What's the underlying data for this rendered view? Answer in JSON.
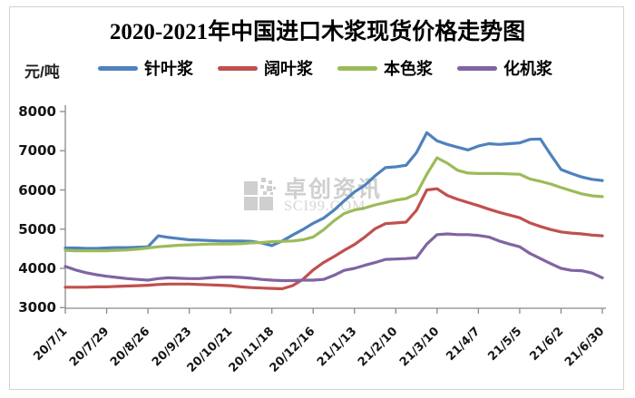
{
  "title": "2020-2021年中国进口木浆现货价格走势图",
  "y_axis_unit": "元/吨",
  "legend": [
    {
      "label": "针叶浆",
      "color": "#4F81BD"
    },
    {
      "label": "阔叶浆",
      "color": "#C0504D"
    },
    {
      "label": "本色浆",
      "color": "#9BBB59"
    },
    {
      "label": "化机浆",
      "color": "#8064A2"
    }
  ],
  "watermark": {
    "brand": "卓创资讯",
    "site": "SCI99.COM"
  },
  "chart_data": {
    "type": "line",
    "title": "2020-2021年中国进口木浆现货价格走势图",
    "ylabel": "元/吨",
    "ylim": [
      3000,
      8000
    ],
    "yticks": [
      3000,
      4000,
      5000,
      6000,
      7000,
      8000
    ],
    "x_tick_labels": [
      "20/7/1",
      "20/7/29",
      "20/8/26",
      "20/9/23",
      "20/10/21",
      "20/11/18",
      "20/12/16",
      "21/1/13",
      "21/2/10",
      "21/3/10",
      "21/4/7",
      "21/5/5",
      "21/6/2",
      "21/6/30"
    ],
    "x_start": "20/7/1",
    "x_end": "21/6/30",
    "sample_interval_days": 7,
    "grid": false,
    "legend_position": "top",
    "series": [
      {
        "name": "针叶浆",
        "color": "#4F81BD",
        "values": [
          4520,
          4520,
          4510,
          4510,
          4520,
          4530,
          4530,
          4540,
          4550,
          4830,
          4790,
          4760,
          4730,
          4720,
          4710,
          4700,
          4700,
          4700,
          4690,
          4650,
          4580,
          4700,
          4850,
          4990,
          5150,
          5280,
          5480,
          5720,
          5950,
          6120,
          6360,
          6570,
          6590,
          6630,
          6950,
          7460,
          7250,
          7160,
          7090,
          7020,
          7120,
          7180,
          7160,
          7180,
          7200,
          7290,
          7300,
          6900,
          6520,
          6420,
          6330,
          6270,
          6240
        ]
      },
      {
        "name": "阔叶浆",
        "color": "#C0504D",
        "values": [
          3520,
          3520,
          3520,
          3530,
          3530,
          3540,
          3550,
          3560,
          3570,
          3590,
          3600,
          3600,
          3600,
          3590,
          3580,
          3570,
          3560,
          3530,
          3510,
          3500,
          3490,
          3480,
          3560,
          3720,
          3960,
          4150,
          4300,
          4460,
          4610,
          4800,
          5010,
          5140,
          5160,
          5180,
          5480,
          6000,
          6030,
          5860,
          5760,
          5680,
          5600,
          5510,
          5430,
          5360,
          5290,
          5160,
          5070,
          4990,
          4930,
          4900,
          4880,
          4850,
          4830
        ]
      },
      {
        "name": "本色浆",
        "color": "#9BBB59",
        "values": [
          4460,
          4450,
          4450,
          4450,
          4450,
          4460,
          4470,
          4490,
          4520,
          4550,
          4570,
          4590,
          4600,
          4610,
          4620,
          4620,
          4620,
          4630,
          4650,
          4660,
          4680,
          4690,
          4700,
          4730,
          4800,
          4980,
          5210,
          5400,
          5490,
          5540,
          5620,
          5680,
          5740,
          5780,
          5900,
          6400,
          6820,
          6680,
          6500,
          6430,
          6420,
          6420,
          6420,
          6410,
          6400,
          6280,
          6220,
          6150,
          6060,
          5980,
          5900,
          5850,
          5830
        ]
      },
      {
        "name": "化机浆",
        "color": "#8064A2",
        "values": [
          4050,
          3960,
          3890,
          3840,
          3800,
          3770,
          3740,
          3720,
          3700,
          3740,
          3760,
          3750,
          3740,
          3740,
          3760,
          3780,
          3780,
          3770,
          3750,
          3720,
          3700,
          3690,
          3690,
          3700,
          3700,
          3720,
          3820,
          3950,
          4000,
          4080,
          4150,
          4230,
          4240,
          4250,
          4270,
          4620,
          4860,
          4880,
          4860,
          4860,
          4840,
          4800,
          4700,
          4620,
          4550,
          4380,
          4250,
          4120,
          4000,
          3950,
          3940,
          3880,
          3760
        ]
      }
    ]
  }
}
